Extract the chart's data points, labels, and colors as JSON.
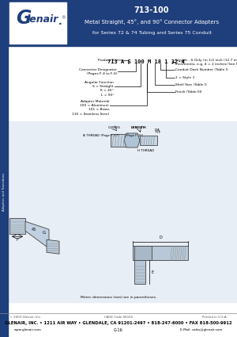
{
  "title_number": "713-100",
  "title_main": "Metal Straight, 45°, and 90° Connector Adapters",
  "title_sub": "for Series 72 & 74 Tubing and Series 75 Conduit",
  "header_bg": "#1f3e7c",
  "header_text_color": "#ffffff",
  "body_bg": "#ffffff",
  "part_number": "713 A S 100 M 18 1 32-4",
  "footer_line1": "GLENAIR, INC. • 1211 AIR WAY • GLENDALE, CA 91201-2497 • 818-247-6000 • FAX 818-500-9912",
  "footer_line2": "www.glenair.com",
  "footer_line4": "E-Mail: sales@glenair.com",
  "footer_copy": "© 2003 Glenair, Inc.",
  "footer_cage": "CAGE Code 06324",
  "footer_printed": "Printed in U.S.A.",
  "page_label": "G-16",
  "sidebar_color": "#1f3e7c",
  "diagram_bg": "#e8eef5",
  "hatch_color": "#aabbcc"
}
